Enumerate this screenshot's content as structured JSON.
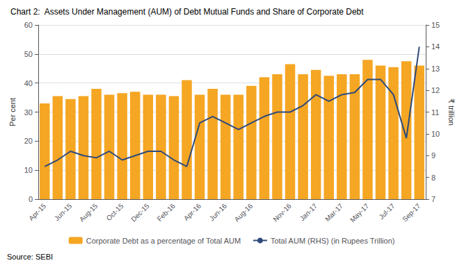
{
  "chart_data": {
    "type": "bar",
    "title": "Chart 2:  Assets Under Management (AUM) of Debt Mutual Funds and Share of Corporate Debt",
    "annotations": [
      "Source: SEBI"
    ],
    "categories": [
      "Apr-15",
      null,
      "Jun-15",
      null,
      "Aug-15",
      null,
      "Oct-15",
      null,
      "Dec-15",
      null,
      "Feb-16",
      null,
      "Apr-16",
      null,
      "Jun-16",
      null,
      "Aug-16",
      null,
      null,
      "Nov-16",
      null,
      "Jan-17",
      null,
      "Mar-17",
      null,
      "May-17",
      null,
      "Jul-17",
      null,
      "Sep-17"
    ],
    "series": [
      {
        "name": "Corporate Debt as a percentage of Total AUM",
        "type": "bar",
        "color": "#F5A623",
        "values": [
          33,
          35.5,
          34.5,
          35.5,
          38,
          36,
          36.5,
          37,
          36,
          36,
          35.5,
          41,
          36,
          38,
          36,
          36,
          39,
          42,
          43,
          46.5,
          43,
          44.5,
          42.5,
          43,
          43,
          48,
          46,
          45.5,
          47.5,
          46
        ]
      },
      {
        "name": "Total AUM (RHS) (in Rupees Trillion)",
        "type": "line",
        "color": "#2E4A7A",
        "axis": "y2",
        "values": [
          8.5,
          8.8,
          9.2,
          9.0,
          8.9,
          9.2,
          8.8,
          9.0,
          9.2,
          9.2,
          8.8,
          8.5,
          10.5,
          10.8,
          10.5,
          10.2,
          10.5,
          10.8,
          11.0,
          11.0,
          11.3,
          11.8,
          11.5,
          11.8,
          11.9,
          12.5,
          12.5,
          11.8,
          9.8,
          14.0
        ]
      }
    ],
    "ylabel": "Per cent",
    "y2label": "₹ trillion",
    "ylim": [
      0,
      60
    ],
    "yticks": [
      0,
      10,
      20,
      30,
      40,
      50,
      60
    ],
    "y2lim": [
      7,
      15
    ],
    "y2ticks": [
      7,
      8,
      9,
      10,
      11,
      12,
      13,
      14,
      15
    ],
    "grid": true,
    "legend": "bottom"
  }
}
